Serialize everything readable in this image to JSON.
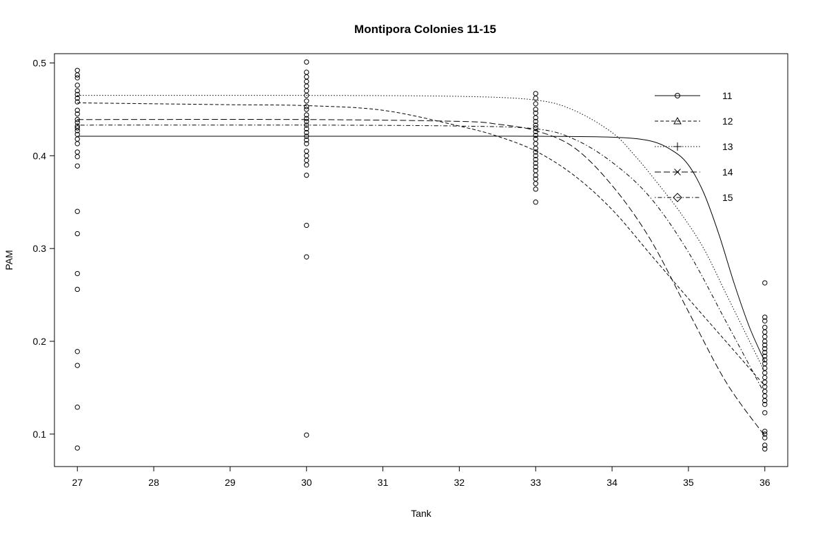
{
  "chart_data": {
    "type": "scatter",
    "title": "Montipora Colonies 11-15",
    "xlabel": "Tank",
    "ylabel": "PAM",
    "xlim": [
      26.7,
      36.3
    ],
    "ylim": [
      0.065,
      0.51
    ],
    "x_ticks": [
      27,
      28,
      29,
      30,
      31,
      32,
      33,
      34,
      35,
      36
    ],
    "y_ticks": [
      0.1,
      0.2,
      0.3,
      0.4,
      0.5
    ],
    "legend_position": "top-right",
    "points": [
      {
        "x": 27,
        "y": 0.492
      },
      {
        "x": 27,
        "y": 0.487
      },
      {
        "x": 27,
        "y": 0.484
      },
      {
        "x": 27,
        "y": 0.476
      },
      {
        "x": 27,
        "y": 0.47
      },
      {
        "x": 27,
        "y": 0.466
      },
      {
        "x": 27,
        "y": 0.462
      },
      {
        "x": 27,
        "y": 0.458
      },
      {
        "x": 27,
        "y": 0.449
      },
      {
        "x": 27,
        "y": 0.445
      },
      {
        "x": 27,
        "y": 0.439
      },
      {
        "x": 27,
        "y": 0.436
      },
      {
        "x": 27,
        "y": 0.432
      },
      {
        "x": 27,
        "y": 0.43
      },
      {
        "x": 27,
        "y": 0.427
      },
      {
        "x": 27,
        "y": 0.423
      },
      {
        "x": 27,
        "y": 0.418
      },
      {
        "x": 27,
        "y": 0.413
      },
      {
        "x": 27,
        "y": 0.404
      },
      {
        "x": 27,
        "y": 0.399
      },
      {
        "x": 27,
        "y": 0.389
      },
      {
        "x": 27,
        "y": 0.34
      },
      {
        "x": 27,
        "y": 0.316
      },
      {
        "x": 27,
        "y": 0.273
      },
      {
        "x": 27,
        "y": 0.256
      },
      {
        "x": 27,
        "y": 0.189
      },
      {
        "x": 27,
        "y": 0.174
      },
      {
        "x": 27,
        "y": 0.129
      },
      {
        "x": 27,
        "y": 0.085
      },
      {
        "x": 30,
        "y": 0.501
      },
      {
        "x": 30,
        "y": 0.49
      },
      {
        "x": 30,
        "y": 0.485
      },
      {
        "x": 30,
        "y": 0.48
      },
      {
        "x": 30,
        "y": 0.475
      },
      {
        "x": 30,
        "y": 0.47
      },
      {
        "x": 30,
        "y": 0.465
      },
      {
        "x": 30,
        "y": 0.459
      },
      {
        "x": 30,
        "y": 0.453
      },
      {
        "x": 30,
        "y": 0.45
      },
      {
        "x": 30,
        "y": 0.444
      },
      {
        "x": 30,
        "y": 0.44
      },
      {
        "x": 30,
        "y": 0.437
      },
      {
        "x": 30,
        "y": 0.433
      },
      {
        "x": 30,
        "y": 0.429
      },
      {
        "x": 30,
        "y": 0.425
      },
      {
        "x": 30,
        "y": 0.421
      },
      {
        "x": 30,
        "y": 0.417
      },
      {
        "x": 30,
        "y": 0.413
      },
      {
        "x": 30,
        "y": 0.405
      },
      {
        "x": 30,
        "y": 0.4
      },
      {
        "x": 30,
        "y": 0.395
      },
      {
        "x": 30,
        "y": 0.39
      },
      {
        "x": 30,
        "y": 0.379
      },
      {
        "x": 30,
        "y": 0.325
      },
      {
        "x": 30,
        "y": 0.291
      },
      {
        "x": 30,
        "y": 0.099
      },
      {
        "x": 33,
        "y": 0.467
      },
      {
        "x": 33,
        "y": 0.462
      },
      {
        "x": 33,
        "y": 0.456
      },
      {
        "x": 33,
        "y": 0.45
      },
      {
        "x": 33,
        "y": 0.446
      },
      {
        "x": 33,
        "y": 0.441
      },
      {
        "x": 33,
        "y": 0.437
      },
      {
        "x": 33,
        "y": 0.433
      },
      {
        "x": 33,
        "y": 0.43
      },
      {
        "x": 33,
        "y": 0.426
      },
      {
        "x": 33,
        "y": 0.422
      },
      {
        "x": 33,
        "y": 0.418
      },
      {
        "x": 33,
        "y": 0.413
      },
      {
        "x": 33,
        "y": 0.408
      },
      {
        "x": 33,
        "y": 0.404
      },
      {
        "x": 33,
        "y": 0.4
      },
      {
        "x": 33,
        "y": 0.396
      },
      {
        "x": 33,
        "y": 0.392
      },
      {
        "x": 33,
        "y": 0.388
      },
      {
        "x": 33,
        "y": 0.384
      },
      {
        "x": 33,
        "y": 0.379
      },
      {
        "x": 33,
        "y": 0.375
      },
      {
        "x": 33,
        "y": 0.37
      },
      {
        "x": 33,
        "y": 0.364
      },
      {
        "x": 33,
        "y": 0.35
      },
      {
        "x": 36,
        "y": 0.263
      },
      {
        "x": 36,
        "y": 0.226
      },
      {
        "x": 36,
        "y": 0.222
      },
      {
        "x": 36,
        "y": 0.215
      },
      {
        "x": 36,
        "y": 0.21
      },
      {
        "x": 36,
        "y": 0.205
      },
      {
        "x": 36,
        "y": 0.2
      },
      {
        "x": 36,
        "y": 0.196
      },
      {
        "x": 36,
        "y": 0.192
      },
      {
        "x": 36,
        "y": 0.188
      },
      {
        "x": 36,
        "y": 0.184
      },
      {
        "x": 36,
        "y": 0.18
      },
      {
        "x": 36,
        "y": 0.176
      },
      {
        "x": 36,
        "y": 0.171
      },
      {
        "x": 36,
        "y": 0.166
      },
      {
        "x": 36,
        "y": 0.161
      },
      {
        "x": 36,
        "y": 0.156
      },
      {
        "x": 36,
        "y": 0.151
      },
      {
        "x": 36,
        "y": 0.146
      },
      {
        "x": 36,
        "y": 0.141
      },
      {
        "x": 36,
        "y": 0.136
      },
      {
        "x": 36,
        "y": 0.132
      },
      {
        "x": 36,
        "y": 0.123
      },
      {
        "x": 36,
        "y": 0.103
      },
      {
        "x": 36,
        "y": 0.1
      },
      {
        "x": 36,
        "y": 0.096
      },
      {
        "x": 36,
        "y": 0.088
      },
      {
        "x": 36,
        "y": 0.084
      }
    ],
    "series": [
      {
        "name": "11",
        "line_style": "solid",
        "marker": "circle",
        "x": [
          27,
          30,
          32,
          33,
          34,
          34.5,
          34.8,
          35.0,
          35.2,
          35.4,
          35.6,
          35.8,
          36.0
        ],
        "y": [
          0.421,
          0.421,
          0.421,
          0.421,
          0.42,
          0.416,
          0.405,
          0.39,
          0.36,
          0.315,
          0.262,
          0.215,
          0.178
        ]
      },
      {
        "name": "12",
        "line_style": "dashed",
        "marker": "triangle",
        "x": [
          27,
          28,
          29,
          30,
          31,
          32,
          32.5,
          33.0,
          33.5,
          34.0,
          34.5,
          35.0,
          35.5,
          36.0
        ],
        "y": [
          0.457,
          0.456,
          0.455,
          0.454,
          0.449,
          0.432,
          0.421,
          0.405,
          0.379,
          0.342,
          0.294,
          0.246,
          0.199,
          0.152
        ]
      },
      {
        "name": "13",
        "line_style": "dotted",
        "marker": "plus",
        "x": [
          27,
          30,
          32,
          33.0,
          33.5,
          34.0,
          34.3,
          34.6,
          34.9,
          35.2,
          35.5,
          35.8,
          36.0
        ],
        "y": [
          0.465,
          0.465,
          0.464,
          0.46,
          0.449,
          0.425,
          0.4,
          0.37,
          0.338,
          0.3,
          0.25,
          0.2,
          0.167
        ]
      },
      {
        "name": "14",
        "line_style": "longdash",
        "marker": "cross",
        "x": [
          27,
          30,
          32,
          32.5,
          33.0,
          33.5,
          34.0,
          34.5,
          35.0,
          35.5,
          36.0
        ],
        "y": [
          0.439,
          0.439,
          0.437,
          0.434,
          0.427,
          0.409,
          0.368,
          0.31,
          0.232,
          0.155,
          0.098
        ]
      },
      {
        "name": "15",
        "line_style": "dotdash",
        "marker": "diamond",
        "x": [
          27,
          30,
          32,
          33.0,
          33.5,
          34.0,
          34.5,
          35.0,
          35.5,
          36.0
        ],
        "y": [
          0.433,
          0.433,
          0.432,
          0.429,
          0.418,
          0.393,
          0.355,
          0.296,
          0.22,
          0.143
        ]
      }
    ]
  }
}
